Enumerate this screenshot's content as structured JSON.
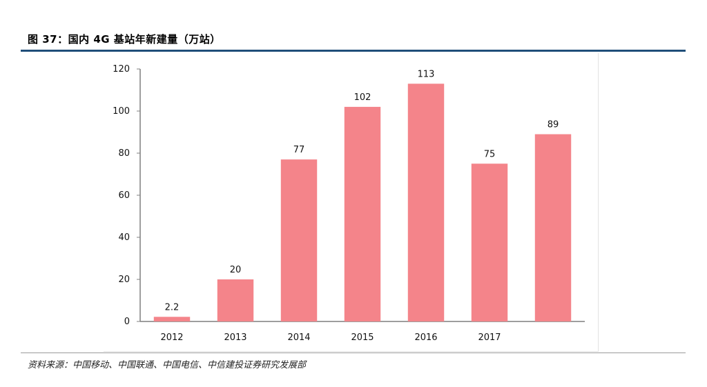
{
  "figure_title": "图 37：国内 4G 基站年新建量（万站）",
  "source_note": "资料来源：中国移动、中国联通、中国电信、中信建投证券研究发展部",
  "colors": {
    "bar": "#f4848a",
    "axis": "#7f7f7f",
    "rule": "#1f4e79"
  },
  "chart_data": {
    "type": "bar",
    "categories": [
      "2012",
      "2013",
      "2014",
      "2015",
      "2016",
      "2017",
      ""
    ],
    "values": [
      2.2,
      20,
      77,
      102,
      113,
      75,
      89
    ],
    "value_labels": [
      "2.2",
      "20",
      "77",
      "102",
      "113",
      "75",
      "89"
    ],
    "title": "",
    "xlabel": "",
    "ylabel": "",
    "ylim": [
      0,
      120
    ],
    "yticks": [
      0,
      20,
      40,
      60,
      80,
      100,
      120
    ],
    "grid": false,
    "legend": "none"
  }
}
